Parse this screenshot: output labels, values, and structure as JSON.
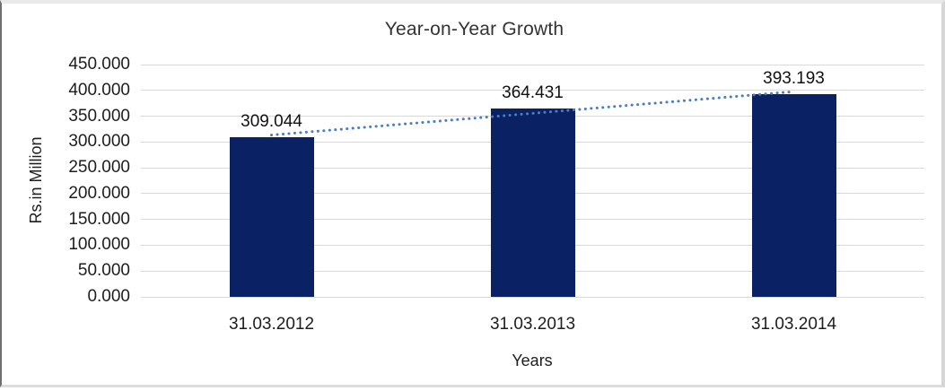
{
  "chart_data": {
    "type": "bar",
    "title": "Year-on-Year Growth",
    "xlabel": "Years",
    "ylabel": "Rs.in Million",
    "categories": [
      "31.03.2012",
      "31.03.2013",
      "31.03.2014"
    ],
    "values": [
      309.044,
      364.431,
      393.193
    ],
    "data_labels": [
      "309.044",
      "364.431",
      "393.193"
    ],
    "ylim": [
      0,
      450
    ],
    "ytick_step": 50,
    "ytick_labels": [
      "0.000",
      "50.000",
      "100.000",
      "150.000",
      "200.000",
      "250.000",
      "300.000",
      "350.000",
      "400.000",
      "450.000"
    ],
    "grid": true,
    "legend": "none",
    "bar_color": "#0a2264",
    "gridline_color": "#d9d9d9",
    "trendline": {
      "type": "linear",
      "style": "dotted",
      "color": "#4a7ebd"
    }
  }
}
